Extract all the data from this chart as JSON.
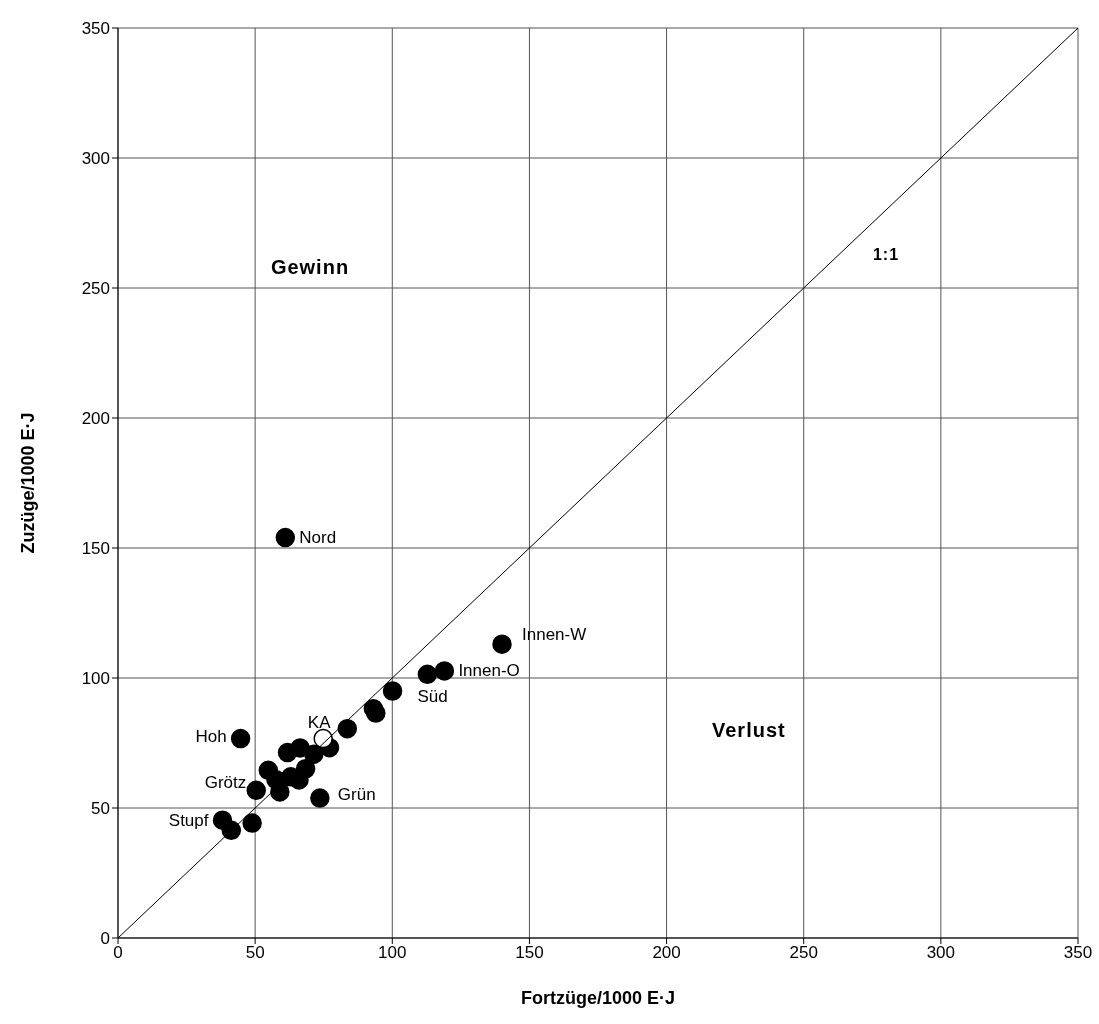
{
  "chart_data": {
    "type": "scatter",
    "xlabel": "Fortzüge/1000 E·J",
    "ylabel": "Zuzüge/1000 E·J",
    "xlim": [
      0,
      350
    ],
    "ylim": [
      0,
      350
    ],
    "xticks": [
      0,
      50,
      100,
      150,
      200,
      250,
      300,
      350
    ],
    "yticks": [
      0,
      50,
      100,
      150,
      200,
      250,
      300,
      350
    ],
    "grid": true,
    "marker": "circle",
    "series": [
      {
        "color": "#000000",
        "x": [
          61,
          140,
          119,
          112.8,
          100.1,
          93.1,
          94,
          83.6,
          77.1,
          71.4,
          66.4,
          61.8,
          68.4,
          66,
          63,
          54.8,
          57.6,
          59,
          50.4,
          73.6,
          44.7,
          38.1,
          41.3,
          48.9
        ],
        "values": [
          154,
          113,
          102.7,
          101.4,
          95,
          88.2,
          86.5,
          80.5,
          73.2,
          70.7,
          73.1,
          71.3,
          65.1,
          60.8,
          62,
          64.5,
          60.9,
          56.2,
          56.8,
          53.8,
          76.7,
          45.3,
          41.4,
          44.2
        ]
      },
      {
        "color": "#ffffff",
        "x": [
          74.8
        ],
        "values": [
          76.7
        ]
      },
      {
        "type": "line",
        "color": "#000000",
        "marker": "none",
        "x": [
          0,
          350
        ],
        "values": [
          0,
          350
        ]
      }
    ],
    "annotations": [
      {
        "text": "Nord",
        "x": 61,
        "y": 154
      },
      {
        "text": "Innen-W",
        "x": 140,
        "y": 113
      },
      {
        "text": "Innen-O",
        "x": 119,
        "y": 102.7
      },
      {
        "text": "Süd",
        "x": 112.8,
        "y": 101.4
      },
      {
        "text": "KA",
        "x": 74.8,
        "y": 76.7
      },
      {
        "text": "Hoh",
        "x": 44.7,
        "y": 76.7
      },
      {
        "text": "Grötz",
        "x": 54.8,
        "y": 64.5
      },
      {
        "text": "Grün",
        "x": 73.6,
        "y": 53.8
      },
      {
        "text": "Stupf",
        "x": 38.1,
        "y": 45.3
      },
      "Gewinn",
      "Verlust",
      "1:1"
    ]
  }
}
